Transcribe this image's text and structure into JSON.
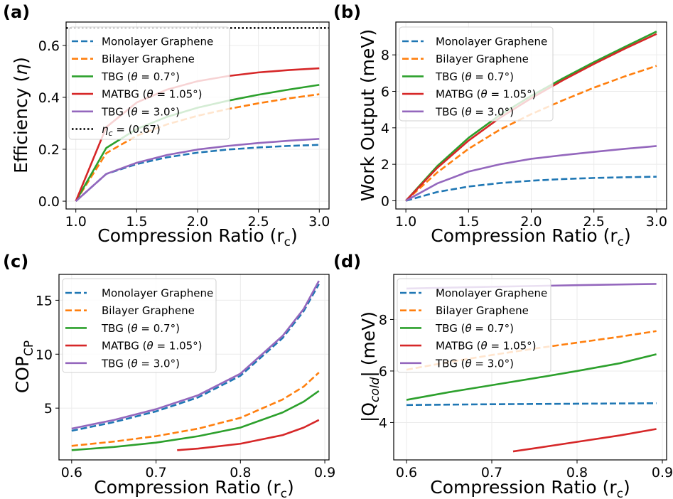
{
  "chart_data": [
    {
      "panel": "(a)",
      "type": "line",
      "xlabel": "Compression Ratio (r_c)",
      "xlabel_main": "Compression Ratio (r",
      "xlabel_sub": "c",
      "xlabel_end": ")",
      "ylabel": "Efficiency (η)",
      "ylabel_main": "Efficiency (",
      "ylabel_sym": "η",
      "ylabel_end": ")",
      "xlim": [
        0.92,
        3.08
      ],
      "ylim": [
        -0.03,
        0.69
      ],
      "xticks": [
        1.0,
        1.5,
        2.0,
        2.5,
        3.0
      ],
      "xtick_labels": [
        "1.0",
        "1.5",
        "2.0",
        "2.5",
        "3.0"
      ],
      "yticks": [
        0.0,
        0.2,
        0.4,
        0.6
      ],
      "ytick_labels": [
        "0.0",
        "0.2",
        "0.4",
        "0.6"
      ],
      "legend_position": "upper-left",
      "hline": {
        "name": "ηc = (0.67)",
        "value": 0.667,
        "color": "#000000",
        "dash": "dotted"
      },
      "legend_entries": [
        "Monolayer Graphene",
        "Bilayer Graphene",
        "TBG (θ = 0.7°)",
        "MATBG (θ = 1.05°)",
        "TBG (θ = 3.0°)",
        "ηc = (0.67)"
      ],
      "series": [
        {
          "name": "Monolayer Graphene",
          "color": "#1f77b4",
          "dash": "dashed",
          "x": [
            1.0,
            1.25,
            1.5,
            1.75,
            2.0,
            2.25,
            2.5,
            2.75,
            3.0
          ],
          "y": [
            0.0,
            0.105,
            0.143,
            0.169,
            0.187,
            0.199,
            0.207,
            0.213,
            0.217
          ]
        },
        {
          "name": "Bilayer Graphene",
          "color": "#ff7f0e",
          "dash": "dashed",
          "x": [
            1.0,
            1.25,
            1.5,
            1.75,
            2.0,
            2.25,
            2.5,
            2.75,
            3.0
          ],
          "y": [
            0.0,
            0.185,
            0.252,
            0.296,
            0.329,
            0.355,
            0.377,
            0.396,
            0.412
          ]
        },
        {
          "name": "TBG (θ = 0.7°)",
          "color": "#2ca02c",
          "dash": "solid",
          "x": [
            1.0,
            1.25,
            1.5,
            1.75,
            2.0,
            2.25,
            2.5,
            2.75,
            3.0
          ],
          "y": [
            0.0,
            0.205,
            0.278,
            0.325,
            0.36,
            0.387,
            0.41,
            0.43,
            0.448
          ]
        },
        {
          "name": "MATBG (θ = 1.05°)",
          "color": "#d62728",
          "dash": "solid",
          "x": [
            1.0,
            1.25,
            1.5,
            1.75,
            2.0,
            2.25,
            2.5,
            2.75,
            3.0
          ],
          "y": [
            0.0,
            0.285,
            0.38,
            0.43,
            0.462,
            0.482,
            0.496,
            0.505,
            0.512
          ]
        },
        {
          "name": "TBG (θ = 3.0°)",
          "color": "#9467bd",
          "dash": "solid",
          "x": [
            1.0,
            1.25,
            1.5,
            1.75,
            2.0,
            2.25,
            2.5,
            2.75,
            3.0
          ],
          "y": [
            0.0,
            0.105,
            0.148,
            0.178,
            0.199,
            0.213,
            0.224,
            0.233,
            0.24
          ]
        }
      ]
    },
    {
      "panel": "(b)",
      "type": "line",
      "xlabel": "Compression Ratio (r_c)",
      "xlabel_main": "Compression Ratio (r",
      "xlabel_sub": "c",
      "xlabel_end": ")",
      "ylabel": "Work Output (meV)",
      "ylabel_main": "Work Output (meV)",
      "xlim": [
        0.92,
        3.08
      ],
      "ylim": [
        -0.45,
        9.8
      ],
      "xticks": [
        1.0,
        1.5,
        2.0,
        2.5,
        3.0
      ],
      "xtick_labels": [
        "1.0",
        "1.5",
        "2.0",
        "2.5",
        "3.0"
      ],
      "yticks": [
        0,
        2,
        4,
        6,
        8
      ],
      "ytick_labels": [
        "0",
        "2",
        "4",
        "6",
        "8"
      ],
      "legend_position": "upper-left",
      "legend_entries": [
        "Monolayer Graphene",
        "Bilayer Graphene",
        "TBG (θ = 0.7°)",
        "MATBG (θ = 1.05°)",
        "TBG (θ = 3.0°)"
      ],
      "series": [
        {
          "name": "Monolayer Graphene",
          "color": "#1f77b4",
          "dash": "dashed",
          "x": [
            1.0,
            1.25,
            1.5,
            1.75,
            2.0,
            2.25,
            2.5,
            2.75,
            3.0
          ],
          "y": [
            0.0,
            0.48,
            0.78,
            0.97,
            1.1,
            1.19,
            1.25,
            1.29,
            1.32
          ]
        },
        {
          "name": "Bilayer Graphene",
          "color": "#ff7f0e",
          "dash": "dashed",
          "x": [
            1.0,
            1.25,
            1.5,
            1.75,
            2.0,
            2.25,
            2.5,
            2.75,
            3.0
          ],
          "y": [
            0.0,
            1.55,
            2.85,
            3.9,
            4.75,
            5.5,
            6.2,
            6.83,
            7.4
          ]
        },
        {
          "name": "TBG (θ = 0.7°)",
          "color": "#2ca02c",
          "dash": "solid",
          "x": [
            1.0,
            1.25,
            1.5,
            1.75,
            2.0,
            2.25,
            2.5,
            2.75,
            3.0
          ],
          "y": [
            0.0,
            1.9,
            3.45,
            4.7,
            5.75,
            6.7,
            7.6,
            8.45,
            9.28
          ]
        },
        {
          "name": "MATBG (θ = 1.05°)",
          "color": "#d62728",
          "dash": "solid",
          "x": [
            1.0,
            1.25,
            1.5,
            1.75,
            2.0,
            2.25,
            2.5,
            2.75,
            3.0
          ],
          "y": [
            0.0,
            1.8,
            3.3,
            4.55,
            5.62,
            6.6,
            7.5,
            8.35,
            9.15
          ]
        },
        {
          "name": "TBG (θ = 3.0°)",
          "color": "#9467bd",
          "dash": "solid",
          "x": [
            1.0,
            1.25,
            1.5,
            1.75,
            2.0,
            2.25,
            2.5,
            2.75,
            3.0
          ],
          "y": [
            0.0,
            0.95,
            1.6,
            2.0,
            2.3,
            2.5,
            2.68,
            2.85,
            3.0
          ]
        }
      ]
    },
    {
      "panel": "(c)",
      "type": "line",
      "xlabel": "Compression Ratio (r_c)",
      "xlabel_main": "Compression Ratio (r",
      "xlabel_sub": "c",
      "xlabel_end": ")",
      "ylabel": "COP_CP",
      "ylabel_main": "COP",
      "ylabel_sub": "CP",
      "xlim": [
        0.585,
        0.905
      ],
      "ylim": [
        0.2,
        17.4
      ],
      "xticks": [
        0.6,
        0.7,
        0.8,
        0.9
      ],
      "xtick_labels": [
        "0.6",
        "0.7",
        "0.8",
        "0.9"
      ],
      "yticks": [
        5,
        10,
        15
      ],
      "ytick_labels": [
        "5",
        "10",
        "15"
      ],
      "legend_position": "upper-left",
      "legend_entries": [
        "Monolayer Graphene",
        "Bilayer Graphene",
        "TBG (θ = 0.7°)",
        "MATBG (θ = 1.05°)",
        "TBG (θ = 3.0°)"
      ],
      "series": [
        {
          "name": "Monolayer Graphene",
          "color": "#1f77b4",
          "dash": "dashed",
          "x": [
            0.6,
            0.65,
            0.7,
            0.75,
            0.8,
            0.85,
            0.875,
            0.893
          ],
          "y": [
            2.9,
            3.7,
            4.7,
            6.0,
            8.0,
            11.5,
            14.0,
            16.5
          ]
        },
        {
          "name": "Bilayer Graphene",
          "color": "#ff7f0e",
          "dash": "dashed",
          "x": [
            0.6,
            0.65,
            0.7,
            0.75,
            0.8,
            0.85,
            0.875,
            0.893
          ],
          "y": [
            1.5,
            1.9,
            2.4,
            3.1,
            4.1,
            5.8,
            7.0,
            8.3
          ]
        },
        {
          "name": "TBG (θ = 0.7°)",
          "color": "#2ca02c",
          "dash": "solid",
          "x": [
            0.6,
            0.65,
            0.7,
            0.75,
            0.8,
            0.85,
            0.875,
            0.893
          ],
          "y": [
            1.1,
            1.4,
            1.8,
            2.4,
            3.2,
            4.6,
            5.6,
            6.6
          ]
        },
        {
          "name": "MATBG (θ = 1.05°)",
          "color": "#d62728",
          "dash": "solid",
          "x": [
            0.725,
            0.75,
            0.8,
            0.85,
            0.875,
            0.893
          ],
          "y": [
            1.1,
            1.25,
            1.7,
            2.5,
            3.2,
            3.9
          ]
        },
        {
          "name": "TBG (θ = 3.0°)",
          "color": "#9467bd",
          "dash": "solid",
          "x": [
            0.6,
            0.65,
            0.7,
            0.75,
            0.8,
            0.85,
            0.875,
            0.893
          ],
          "y": [
            3.1,
            3.9,
            4.9,
            6.2,
            8.2,
            11.7,
            14.2,
            16.8
          ]
        }
      ]
    },
    {
      "panel": "(d)",
      "type": "line",
      "xlabel": "Compression Ratio (r_c)",
      "xlabel_main": "Compression Ratio (r",
      "xlabel_sub": "c",
      "xlabel_end": ")",
      "ylabel": "|Q_cold| (meV)",
      "ylabel_main": "|Q",
      "ylabel_sub": "cold",
      "ylabel_end": "| (meV)",
      "xlim": [
        0.585,
        0.905
      ],
      "ylim": [
        2.55,
        9.75
      ],
      "xticks": [
        0.6,
        0.7,
        0.8,
        0.9
      ],
      "xtick_labels": [
        "0.6",
        "0.7",
        "0.8",
        "0.9"
      ],
      "yticks": [
        4,
        6,
        8
      ],
      "ytick_labels": [
        "4",
        "6",
        "8"
      ],
      "legend_position": "upper-left",
      "legend_entries": [
        "Monolayer Graphene",
        "Bilayer Graphene",
        "TBG (θ = 0.7°)",
        "MATBG (θ = 1.05°)",
        "TBG (θ = 3.0°)"
      ],
      "series": [
        {
          "name": "Monolayer Graphene",
          "color": "#1f77b4",
          "dash": "dashed",
          "x": [
            0.6,
            0.7,
            0.8,
            0.893
          ],
          "y": [
            4.68,
            4.71,
            4.73,
            4.75
          ]
        },
        {
          "name": "Bilayer Graphene",
          "color": "#ff7f0e",
          "dash": "dashed",
          "x": [
            0.6,
            0.65,
            0.7,
            0.75,
            0.8,
            0.85,
            0.893
          ],
          "y": [
            6.05,
            6.35,
            6.62,
            6.87,
            7.1,
            7.33,
            7.55
          ]
        },
        {
          "name": "TBG (θ = 0.7°)",
          "color": "#2ca02c",
          "dash": "solid",
          "x": [
            0.6,
            0.65,
            0.7,
            0.75,
            0.8,
            0.85,
            0.893
          ],
          "y": [
            4.88,
            5.18,
            5.45,
            5.72,
            6.0,
            6.3,
            6.65
          ]
        },
        {
          "name": "MATBG (θ = 1.05°)",
          "color": "#d62728",
          "dash": "solid",
          "x": [
            0.725,
            0.75,
            0.8,
            0.85,
            0.893
          ],
          "y": [
            2.88,
            3.0,
            3.25,
            3.5,
            3.75
          ]
        },
        {
          "name": "TBG (θ = 3.0°)",
          "color": "#9467bd",
          "dash": "solid",
          "x": [
            0.6,
            0.7,
            0.8,
            0.893
          ],
          "y": [
            9.2,
            9.27,
            9.33,
            9.38
          ]
        }
      ]
    }
  ]
}
